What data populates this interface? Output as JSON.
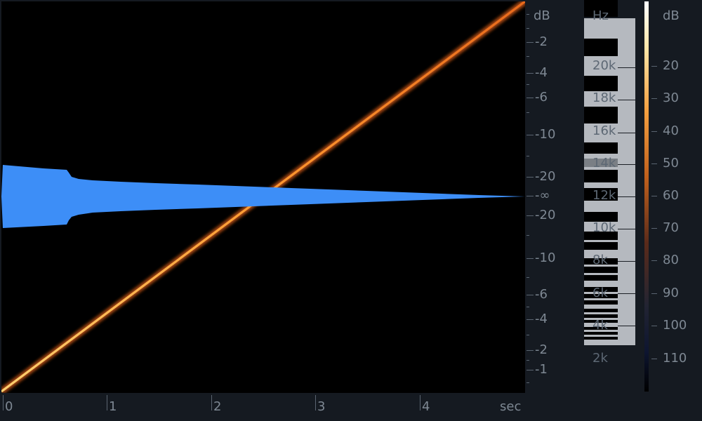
{
  "spectrogram": {
    "db_unit": "dB",
    "db_ticks_upper": [
      "-2",
      "-4",
      "-6",
      "-10",
      "-20"
    ],
    "db_infinity": "-∞",
    "db_ticks_lower": [
      "-20",
      "-10",
      "-6",
      "-4",
      "-2",
      "-1"
    ],
    "time_ticks": [
      "0",
      "1",
      "2",
      "3",
      "4"
    ],
    "time_unit": "sec"
  },
  "frequency_scale": {
    "unit": "Hz",
    "labels": [
      "20k",
      "18k",
      "16k",
      "14k",
      "12k",
      "10k",
      "8k",
      "6k",
      "4k",
      "2k"
    ]
  },
  "color_scale": {
    "unit": "dB",
    "labels": [
      "20",
      "30",
      "40",
      "50",
      "60",
      "70",
      "80",
      "90",
      "100",
      "110"
    ]
  },
  "colors": {
    "background": "#151a21",
    "waveform": "#3d8ef7",
    "sweep": "#ff9a30",
    "colormap_top": "#ffffff",
    "colormap_mid": "#e07a22",
    "colormap_bottom": "#000000"
  }
}
